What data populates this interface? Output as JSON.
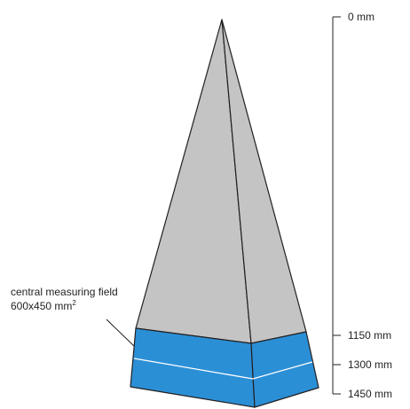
{
  "figure": {
    "annotation": {
      "line1": "central measuring field",
      "line2": "600x450 mm",
      "superscript": "2"
    },
    "scale": {
      "marks": [
        {
          "value": 0,
          "label": "0 mm"
        },
        {
          "value": 1150,
          "label": "1150 mm"
        },
        {
          "value": 1300,
          "label": "1300 mm"
        },
        {
          "value": 1450,
          "label": "1450 mm"
        }
      ]
    },
    "colors": {
      "pyramid_gray": "#c4c4c4",
      "band_blue": "#2b8fd6",
      "outline": "#231f20",
      "band_divider": "#ffffff"
    }
  }
}
